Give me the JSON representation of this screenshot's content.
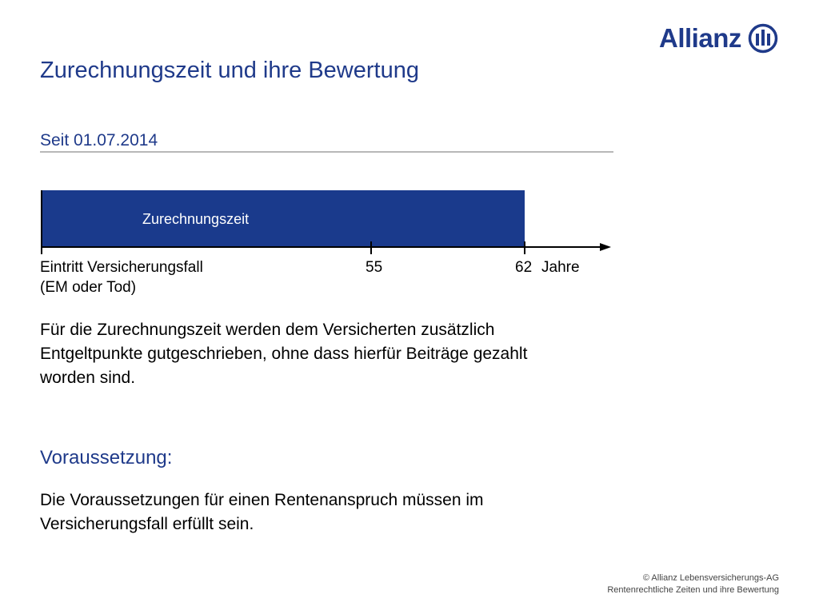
{
  "brand": {
    "name": "Allianz",
    "color": "#1f3a8a"
  },
  "title": "Zurechnungszeit und ihre Bewertung",
  "subtitle": "Seit 01.07.2014",
  "timeline": {
    "bar_label": "Zurechnungszeit",
    "start_label_line1": "Eintritt Versicherungsfall",
    "start_label_line2": "(EM oder Tod)",
    "tick_55": "55",
    "tick_62": "62",
    "axis_unit": "Jahre",
    "bar_color": "#1a3a8c"
  },
  "paragraph1": [
    "Für die Zurechnungszeit werden dem Versicherten zusätzlich",
    "Entgeltpunkte gutgeschrieben, ohne dass hierfür Beiträge gezahlt",
    "worden sind."
  ],
  "section_heading": "Voraussetzung:",
  "paragraph2": [
    "Die Voraussetzungen für einen Rentenanspruch müssen im",
    "Versicherungsfall erfüllt sein."
  ],
  "footer": {
    "line1": "© Allianz Lebensversicherungs-AG",
    "line2": "Rentenrechtliche Zeiten und ihre Bewertung"
  }
}
